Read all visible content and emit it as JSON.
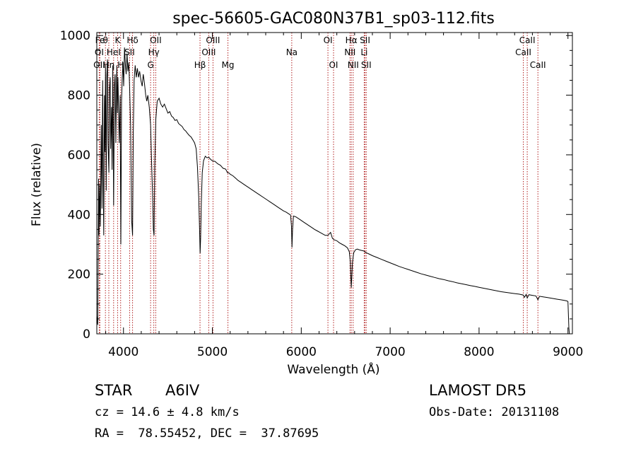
{
  "chart_data": {
    "type": "line",
    "title": "spec-56605-GAC080N37B1_sp03-112.fits",
    "xlabel": "Wavelength (Å)",
    "ylabel": "Flux (relative)",
    "xlim": [
      3700,
      9050
    ],
    "ylim": [
      0,
      1010
    ],
    "xticks": [
      4000,
      5000,
      6000,
      7000,
      8000,
      9000
    ],
    "yticks": [
      0,
      200,
      400,
      600,
      800,
      1000
    ],
    "grid": false,
    "legend": "none",
    "series": [
      {
        "points": [
          [
            3700,
            60
          ],
          [
            3710,
            30
          ],
          [
            3720,
            520
          ],
          [
            3725,
            330
          ],
          [
            3732,
            500
          ],
          [
            3740,
            360
          ],
          [
            3750,
            700
          ],
          [
            3758,
            420
          ],
          [
            3766,
            850
          ],
          [
            3772,
            520
          ],
          [
            3778,
            330
          ],
          [
            3786,
            800
          ],
          [
            3792,
            610
          ],
          [
            3798,
            900
          ],
          [
            3806,
            480
          ],
          [
            3812,
            860
          ],
          [
            3820,
            920
          ],
          [
            3826,
            640
          ],
          [
            3836,
            540
          ],
          [
            3842,
            820
          ],
          [
            3850,
            860
          ],
          [
            3856,
            620
          ],
          [
            3866,
            760
          ],
          [
            3872,
            550
          ],
          [
            3880,
            900
          ],
          [
            3889,
            430
          ],
          [
            3898,
            830
          ],
          [
            3906,
            870
          ],
          [
            3914,
            640
          ],
          [
            3924,
            900
          ],
          [
            3932,
            740
          ],
          [
            3938,
            860
          ],
          [
            3944,
            760
          ],
          [
            3952,
            640
          ],
          [
            3962,
            800
          ],
          [
            3970,
            300
          ],
          [
            3978,
            780
          ],
          [
            3986,
            860
          ],
          [
            3994,
            910
          ],
          [
            4002,
            830
          ],
          [
            4012,
            960
          ],
          [
            4022,
            900
          ],
          [
            4030,
            870
          ],
          [
            4040,
            940
          ],
          [
            4050,
            880
          ],
          [
            4060,
            910
          ],
          [
            4070,
            820
          ],
          [
            4080,
            700
          ],
          [
            4092,
            380
          ],
          [
            4102,
            330
          ],
          [
            4110,
            670
          ],
          [
            4120,
            850
          ],
          [
            4132,
            900
          ],
          [
            4144,
            860
          ],
          [
            4156,
            890
          ],
          [
            4170,
            860
          ],
          [
            4182,
            880
          ],
          [
            4196,
            850
          ],
          [
            4210,
            830
          ],
          [
            4222,
            870
          ],
          [
            4236,
            840
          ],
          [
            4250,
            800
          ],
          [
            4262,
            780
          ],
          [
            4274,
            800
          ],
          [
            4290,
            760
          ],
          [
            4305,
            700
          ],
          [
            4318,
            560
          ],
          [
            4328,
            460
          ],
          [
            4336,
            350
          ],
          [
            4344,
            330
          ],
          [
            4352,
            560
          ],
          [
            4364,
            720
          ],
          [
            4380,
            780
          ],
          [
            4400,
            790
          ],
          [
            4420,
            770
          ],
          [
            4440,
            760
          ],
          [
            4460,
            770
          ],
          [
            4480,
            755
          ],
          [
            4500,
            740
          ],
          [
            4520,
            745
          ],
          [
            4540,
            730
          ],
          [
            4560,
            725
          ],
          [
            4580,
            715
          ],
          [
            4600,
            718
          ],
          [
            4620,
            705
          ],
          [
            4640,
            700
          ],
          [
            4660,
            695
          ],
          [
            4680,
            685
          ],
          [
            4700,
            680
          ],
          [
            4720,
            672
          ],
          [
            4740,
            665
          ],
          [
            4760,
            660
          ],
          [
            4780,
            650
          ],
          [
            4800,
            640
          ],
          [
            4818,
            620
          ],
          [
            4832,
            560
          ],
          [
            4846,
            460
          ],
          [
            4856,
            350
          ],
          [
            4862,
            270
          ],
          [
            4868,
            320
          ],
          [
            4876,
            440
          ],
          [
            4886,
            540
          ],
          [
            4900,
            580
          ],
          [
            4920,
            595
          ],
          [
            4940,
            590
          ],
          [
            4960,
            592
          ],
          [
            4980,
            585
          ],
          [
            5000,
            580
          ],
          [
            5030,
            578
          ],
          [
            5060,
            570
          ],
          [
            5090,
            565
          ],
          [
            5120,
            555
          ],
          [
            5150,
            552
          ],
          [
            5170,
            540
          ],
          [
            5184,
            540
          ],
          [
            5200,
            535
          ],
          [
            5230,
            530
          ],
          [
            5260,
            522
          ],
          [
            5290,
            514
          ],
          [
            5320,
            508
          ],
          [
            5350,
            502
          ],
          [
            5380,
            496
          ],
          [
            5410,
            490
          ],
          [
            5440,
            484
          ],
          [
            5470,
            478
          ],
          [
            5500,
            472
          ],
          [
            5530,
            466
          ],
          [
            5560,
            460
          ],
          [
            5590,
            454
          ],
          [
            5620,
            448
          ],
          [
            5650,
            442
          ],
          [
            5680,
            436
          ],
          [
            5710,
            430
          ],
          [
            5740,
            424
          ],
          [
            5770,
            418
          ],
          [
            5800,
            412
          ],
          [
            5830,
            408
          ],
          [
            5860,
            402
          ],
          [
            5880,
            398
          ],
          [
            5890,
            360
          ],
          [
            5896,
            290
          ],
          [
            5902,
            350
          ],
          [
            5912,
            395
          ],
          [
            5940,
            392
          ],
          [
            5970,
            386
          ],
          [
            6000,
            380
          ],
          [
            6030,
            374
          ],
          [
            6060,
            368
          ],
          [
            6090,
            362
          ],
          [
            6120,
            356
          ],
          [
            6150,
            350
          ],
          [
            6180,
            345
          ],
          [
            6210,
            340
          ],
          [
            6240,
            335
          ],
          [
            6270,
            330
          ],
          [
            6300,
            330
          ],
          [
            6330,
            340
          ],
          [
            6350,
            320
          ],
          [
            6370,
            315
          ],
          [
            6400,
            312
          ],
          [
            6430,
            305
          ],
          [
            6460,
            300
          ],
          [
            6490,
            295
          ],
          [
            6520,
            288
          ],
          [
            6540,
            275
          ],
          [
            6552,
            240
          ],
          [
            6558,
            190
          ],
          [
            6563,
            155
          ],
          [
            6568,
            190
          ],
          [
            6576,
            240
          ],
          [
            6590,
            272
          ],
          [
            6610,
            282
          ],
          [
            6630,
            284
          ],
          [
            6650,
            282
          ],
          [
            6670,
            280
          ],
          [
            6700,
            278
          ],
          [
            6730,
            272
          ],
          [
            6760,
            268
          ],
          [
            6800,
            262
          ],
          [
            6850,
            256
          ],
          [
            6900,
            250
          ],
          [
            6950,
            244
          ],
          [
            7000,
            238
          ],
          [
            7050,
            232
          ],
          [
            7100,
            226
          ],
          [
            7150,
            221
          ],
          [
            7200,
            216
          ],
          [
            7250,
            211
          ],
          [
            7300,
            206
          ],
          [
            7350,
            201
          ],
          [
            7400,
            197
          ],
          [
            7450,
            193
          ],
          [
            7500,
            189
          ],
          [
            7550,
            185
          ],
          [
            7600,
            182
          ],
          [
            7650,
            178
          ],
          [
            7700,
            175
          ],
          [
            7750,
            171
          ],
          [
            7800,
            168
          ],
          [
            7850,
            165
          ],
          [
            7900,
            162
          ],
          [
            7950,
            159
          ],
          [
            8000,
            156
          ],
          [
            8050,
            153
          ],
          [
            8100,
            150
          ],
          [
            8150,
            147
          ],
          [
            8200,
            144
          ],
          [
            8250,
            141
          ],
          [
            8300,
            139
          ],
          [
            8350,
            137
          ],
          [
            8400,
            135
          ],
          [
            8450,
            133
          ],
          [
            8498,
            130
          ],
          [
            8510,
            122
          ],
          [
            8530,
            132
          ],
          [
            8542,
            120
          ],
          [
            8560,
            131
          ],
          [
            8600,
            129
          ],
          [
            8640,
            127
          ],
          [
            8662,
            114
          ],
          [
            8680,
            126
          ],
          [
            8720,
            124
          ],
          [
            8760,
            122
          ],
          [
            8800,
            120
          ],
          [
            8840,
            118
          ],
          [
            8880,
            116
          ],
          [
            8920,
            114
          ],
          [
            8960,
            112
          ],
          [
            8990,
            110
          ],
          [
            9000,
            108
          ],
          [
            9010,
            20
          ],
          [
            9016,
            0
          ]
        ]
      }
    ],
    "lines": [
      {
        "label": "Fe",
        "x": 3735,
        "row": 0
      },
      {
        "label": "θ",
        "x": 3797,
        "row": 0
      },
      {
        "label": "K",
        "x": 3934,
        "row": 0
      },
      {
        "label": "Hδ",
        "x": 4102,
        "row": 0
      },
      {
        "label": "OII",
        "x": 4363,
        "row": 0
      },
      {
        "label": "OIII",
        "x": 5007,
        "row": 0
      },
      {
        "label": "OI",
        "x": 6300,
        "row": 0
      },
      {
        "label": "Hα",
        "x": 6563,
        "row": 0
      },
      {
        "label": "SII",
        "x": 6717,
        "row": 0
      },
      {
        "label": "CaII",
        "x": 8542,
        "row": 0
      },
      {
        "label": "OI",
        "x": 3727,
        "row": 1
      },
      {
        "label": "HeI",
        "x": 3889,
        "row": 1
      },
      {
        "label": "SII",
        "x": 4069,
        "row": 1
      },
      {
        "label": "Hγ",
        "x": 4341,
        "row": 1
      },
      {
        "label": "OIII",
        "x": 4959,
        "row": 1
      },
      {
        "label": "Na",
        "x": 5893,
        "row": 1
      },
      {
        "label": "NII",
        "x": 6548,
        "row": 1
      },
      {
        "label": "Li",
        "x": 6708,
        "row": 1
      },
      {
        "label": "CaII",
        "x": 8498,
        "row": 1
      },
      {
        "label": "OII",
        "x": 3727,
        "row": 2
      },
      {
        "label": "Hη",
        "x": 3835,
        "row": 2
      },
      {
        "label": "H",
        "x": 3968,
        "row": 2
      },
      {
        "label": "G",
        "x": 4305,
        "row": 2
      },
      {
        "label": "Hβ",
        "x": 4861,
        "row": 2
      },
      {
        "label": "Mg",
        "x": 5175,
        "row": 2
      },
      {
        "label": "OI",
        "x": 6363,
        "row": 2
      },
      {
        "label": "NII",
        "x": 6584,
        "row": 2
      },
      {
        "label": "SII",
        "x": 6731,
        "row": 2
      },
      {
        "label": "CaII",
        "x": 8662,
        "row": 2
      }
    ],
    "line_positions": [
      3727,
      3735,
      3797,
      3835,
      3889,
      3934,
      3968,
      4069,
      4102,
      4305,
      4341,
      4363,
      4861,
      4959,
      5007,
      5175,
      5893,
      6300,
      6363,
      6548,
      6563,
      6584,
      6708,
      6717,
      6731,
      8498,
      8542,
      8662
    ],
    "colors": {
      "spectrum": "#000000",
      "lines": "#b22222",
      "axes": "#000000"
    }
  },
  "info": {
    "class": "STAR",
    "subclass": "A6IV",
    "survey": "LAMOST DR5",
    "cz": "cz = 14.6 ± 4.8 km/s",
    "obs_date": "Obs-Date: 20131108",
    "radec": "RA =  78.55452, DEC =  37.87695"
  }
}
